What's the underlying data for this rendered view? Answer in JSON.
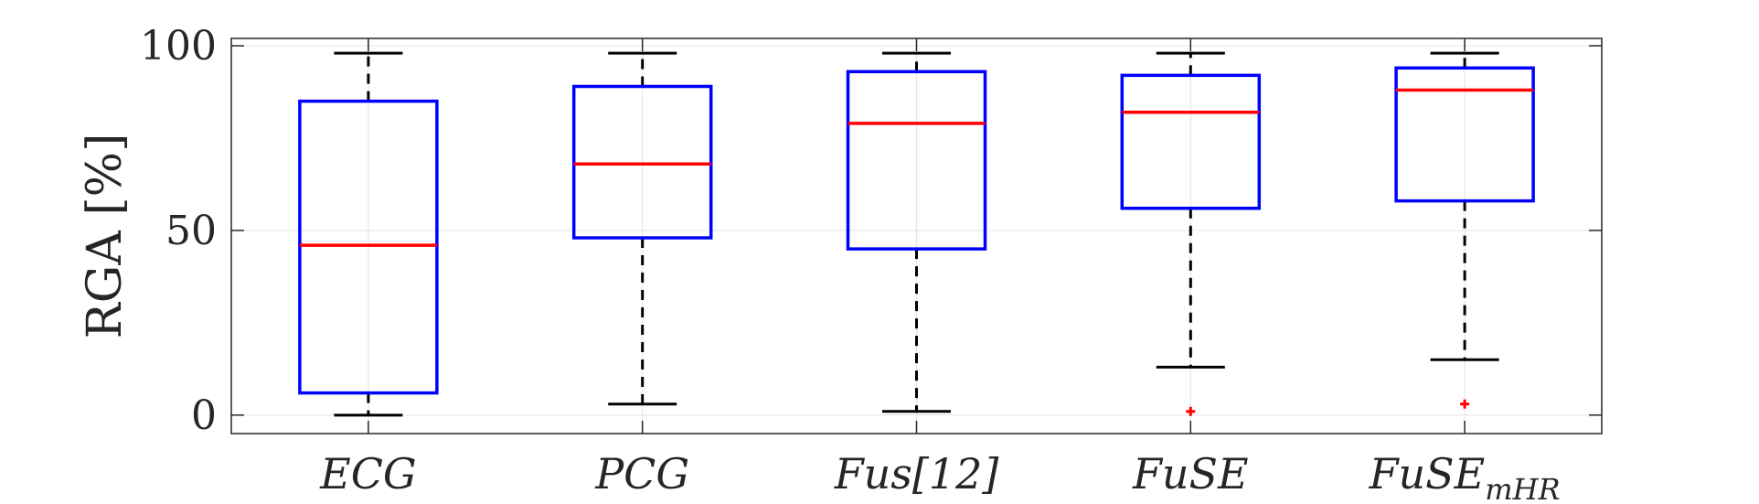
{
  "chart_data": {
    "type": "box",
    "title": "",
    "xlabel": "",
    "ylabel": "RGA [%]",
    "ylim": [
      -5,
      102
    ],
    "yticks": [
      0,
      50,
      100
    ],
    "ytick_labels": [
      "0",
      "50",
      "100"
    ],
    "grid": true,
    "categories": [
      "ECG",
      "PCG",
      "Fus[12]",
      "FuSE",
      "FuSE"
    ],
    "category_subscripts": [
      "",
      "",
      "",
      "",
      "mHR"
    ],
    "boxes": [
      {
        "whisker_low": 0,
        "q1": 6,
        "median": 46,
        "q3": 85,
        "whisker_high": 98,
        "outliers": []
      },
      {
        "whisker_low": 3,
        "q1": 48,
        "median": 68,
        "q3": 89,
        "whisker_high": 98,
        "outliers": []
      },
      {
        "whisker_low": 1,
        "q1": 45,
        "median": 79,
        "q3": 93,
        "whisker_high": 98,
        "outliers": []
      },
      {
        "whisker_low": 13,
        "q1": 56,
        "median": 82,
        "q3": 92,
        "whisker_high": 98,
        "outliers": [
          1
        ]
      },
      {
        "whisker_low": 15,
        "q1": 58,
        "median": 88,
        "q3": 94,
        "whisker_high": 98,
        "outliers": [
          3
        ]
      }
    ],
    "colors": {
      "box": "#0000ff",
      "median": "#ff0000",
      "whisker": "#000000",
      "outlier": "#ff0000",
      "grid": "#e6e6e6",
      "axis": "#262626"
    }
  }
}
